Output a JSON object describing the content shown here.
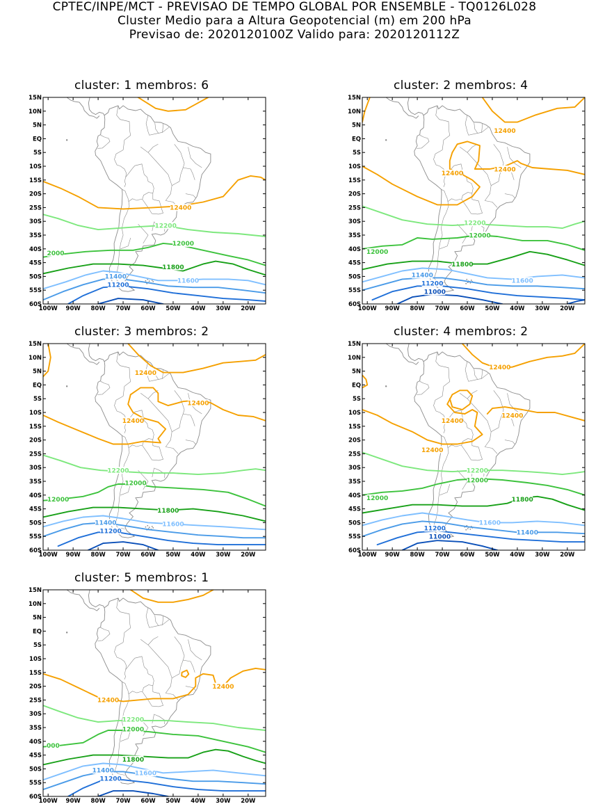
{
  "header": {
    "line1": "CPTEC/INPE/MCT - PREVISAO DE TEMPO GLOBAL POR ENSEMBLE - TQ0126L028",
    "line2": "Cluster Medio para a Altura Geopotencial (m) em 200 hPa",
    "line3": "Previsao de: 2020120100Z    Valido para: 2020120112Z"
  },
  "axis": {
    "lat_labels": [
      "15N",
      "10N",
      "5N",
      "EQ",
      "5S",
      "10S",
      "15S",
      "20S",
      "25S",
      "30S",
      "35S",
      "40S",
      "45S",
      "50S",
      "55S",
      "60S"
    ],
    "lon_labels": [
      "100W",
      "90W",
      "80W",
      "70W",
      "60W",
      "50W",
      "40W",
      "30W",
      "20W"
    ]
  },
  "colors": {
    "12400": "#f5a000",
    "12200": "#7de87d",
    "12000": "#3cc23c",
    "11800": "#17a017",
    "11600": "#7fbfff",
    "11400": "#4a9be8",
    "11200": "#1f6fd8",
    "11000": "#0a4fb8",
    "coast": "#8a8a8a"
  },
  "panels": [
    {
      "title": "cluster: 1   membros: 6",
      "labels": [
        {
          "text": "12400",
          "lon": -47,
          "lat": -25,
          "level": "12400"
        },
        {
          "text": "12200",
          "lon": -53,
          "lat": -31.5,
          "level": "12200"
        },
        {
          "text": "12000",
          "lon": -46,
          "lat": -38,
          "level": "12000"
        },
        {
          "text": "2000",
          "lon": -97,
          "lat": -41.5,
          "level": "12000"
        },
        {
          "text": "11800",
          "lon": -50,
          "lat": -46.5,
          "level": "11800"
        },
        {
          "text": "11600",
          "lon": -44,
          "lat": -51.5,
          "level": "11600"
        },
        {
          "text": "11400",
          "lon": -73,
          "lat": -50,
          "level": "11400"
        },
        {
          "text": "11200",
          "lon": -72,
          "lat": -53,
          "level": "11200"
        }
      ]
    },
    {
      "title": "cluster: 2   membros: 4",
      "labels": [
        {
          "text": "12400",
          "lon": -45,
          "lat": 3,
          "level": "12400"
        },
        {
          "text": "12400",
          "lon": -66,
          "lat": -12.5,
          "level": "12400"
        },
        {
          "text": "12400",
          "lon": -45,
          "lat": -11,
          "level": "12400"
        },
        {
          "text": "12200",
          "lon": -57,
          "lat": -30.5,
          "level": "12200"
        },
        {
          "text": "12000",
          "lon": -55,
          "lat": -35,
          "level": "12000"
        },
        {
          "text": "12000",
          "lon": -96,
          "lat": -41,
          "level": "12000"
        },
        {
          "text": "11800",
          "lon": -62,
          "lat": -45.5,
          "level": "11800"
        },
        {
          "text": "11600",
          "lon": -38,
          "lat": -51.5,
          "level": "11600"
        },
        {
          "text": "11400",
          "lon": -78,
          "lat": -49.5,
          "level": "11400"
        },
        {
          "text": "11200",
          "lon": -74,
          "lat": -52.5,
          "level": "11200"
        },
        {
          "text": "11000",
          "lon": -73,
          "lat": -55.5,
          "level": "11000"
        }
      ]
    },
    {
      "title": "cluster: 3   membros: 2",
      "labels": [
        {
          "text": "12400",
          "lon": -61,
          "lat": 4.5,
          "level": "12400"
        },
        {
          "text": "12400",
          "lon": -40,
          "lat": -6.5,
          "level": "12400"
        },
        {
          "text": "12400",
          "lon": -66,
          "lat": -13,
          "level": "12400"
        },
        {
          "text": "12200",
          "lon": -72,
          "lat": -31,
          "level": "12200"
        },
        {
          "text": "12000",
          "lon": -65,
          "lat": -35.5,
          "level": "12000"
        },
        {
          "text": "12000",
          "lon": -96,
          "lat": -41.5,
          "level": "12000"
        },
        {
          "text": "11800",
          "lon": -52,
          "lat": -45.5,
          "level": "11800"
        },
        {
          "text": "11600",
          "lon": -50,
          "lat": -50.5,
          "level": "11600"
        },
        {
          "text": "11400",
          "lon": -77,
          "lat": -50,
          "level": "11400"
        },
        {
          "text": "11200",
          "lon": -75,
          "lat": -53,
          "level": "11200"
        }
      ]
    },
    {
      "title": "cluster: 4   membros: 2",
      "labels": [
        {
          "text": "12400",
          "lon": -47,
          "lat": 6.5,
          "level": "12400"
        },
        {
          "text": "12400",
          "lon": -66,
          "lat": -13,
          "level": "12400"
        },
        {
          "text": "12400",
          "lon": -42,
          "lat": -11,
          "level": "12400"
        },
        {
          "text": "12400",
          "lon": -74,
          "lat": -23.5,
          "level": "12400"
        },
        {
          "text": "12200",
          "lon": -56,
          "lat": -31,
          "level": "12200"
        },
        {
          "text": "12000",
          "lon": -56,
          "lat": -34.5,
          "level": "12000"
        },
        {
          "text": "12000",
          "lon": -96,
          "lat": -41,
          "level": "12000"
        },
        {
          "text": "11800",
          "lon": -38,
          "lat": -41.5,
          "level": "11800"
        },
        {
          "text": "11600",
          "lon": -51,
          "lat": -50,
          "level": "11600"
        },
        {
          "text": "11400",
          "lon": -36,
          "lat": -53.5,
          "level": "11400"
        },
        {
          "text": "11200",
          "lon": -73,
          "lat": -52,
          "level": "11200"
        },
        {
          "text": "11000",
          "lon": -71,
          "lat": -55,
          "level": "11000"
        }
      ]
    },
    {
      "title": "cluster: 5   membros: 1",
      "labels": [
        {
          "text": "12400",
          "lon": -30,
          "lat": -20,
          "level": "12400"
        },
        {
          "text": "12400",
          "lon": -76,
          "lat": -25,
          "level": "12400"
        },
        {
          "text": "12200",
          "lon": -66,
          "lat": -32,
          "level": "12200"
        },
        {
          "text": "12000",
          "lon": -66,
          "lat": -35.5,
          "level": "12000"
        },
        {
          "text": "000",
          "lon": -98,
          "lat": -41.5,
          "level": "12000"
        },
        {
          "text": "11800",
          "lon": -66,
          "lat": -46.5,
          "level": "11800"
        },
        {
          "text": "11600",
          "lon": -61,
          "lat": -51.5,
          "level": "11600"
        },
        {
          "text": "11400",
          "lon": -78,
          "lat": -50.5,
          "level": "11400"
        },
        {
          "text": "11200",
          "lon": -75,
          "lat": -53.5,
          "level": "11200"
        }
      ]
    }
  ]
}
